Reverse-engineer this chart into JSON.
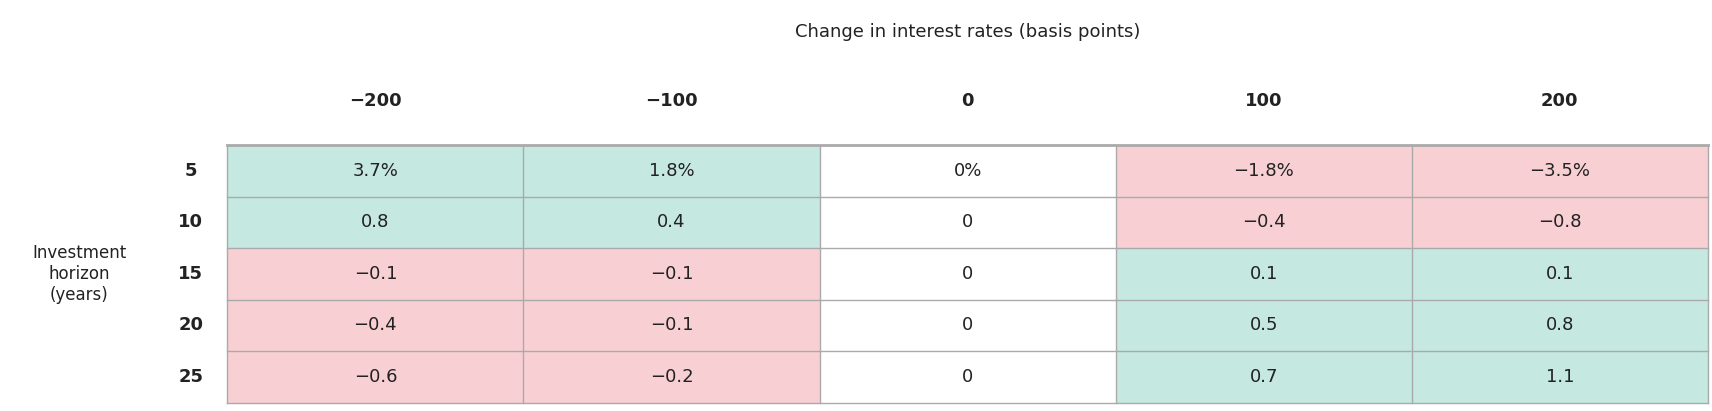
{
  "title": "Change in interest rates (basis points)",
  "col_headers": [
    "−200",
    "−100",
    "0",
    "100",
    "200"
  ],
  "row_headers": [
    "5",
    "10",
    "15",
    "20",
    "25"
  ],
  "row_label_title": "Investment\nhorizon\n(years)",
  "cell_values": [
    [
      "3.7%",
      "1.8%",
      "0%",
      "−1.8%",
      "−3.5%"
    ],
    [
      "0.8",
      "0.4",
      "0",
      "−0.4",
      "−0.8"
    ],
    [
      "−0.1",
      "−0.1",
      "0",
      "0.1",
      "0.1"
    ],
    [
      "−0.4",
      "−0.1",
      "0",
      "0.5",
      "0.8"
    ],
    [
      "−0.6",
      "−0.2",
      "0",
      "0.7",
      "1.1"
    ]
  ],
  "cell_colors": [
    [
      "#c5e8e0",
      "#c5e8e0",
      "#ffffff",
      "#f8d0d3",
      "#f8d0d3"
    ],
    [
      "#c5e8e0",
      "#c5e8e0",
      "#ffffff",
      "#f8d0d3",
      "#f8d0d3"
    ],
    [
      "#f8d0d3",
      "#f8d0d3",
      "#ffffff",
      "#c5e8e0",
      "#c5e8e0"
    ],
    [
      "#f8d0d3",
      "#f8d0d3",
      "#ffffff",
      "#c5e8e0",
      "#c5e8e0"
    ],
    [
      "#f8d0d3",
      "#f8d0d3",
      "#ffffff",
      "#c5e8e0",
      "#c5e8e0"
    ]
  ],
  "background_color": "#ffffff",
  "grid_color": "#aaaaaa",
  "text_color": "#222222",
  "title_fontsize": 13,
  "header_fontsize": 13,
  "cell_fontsize": 13,
  "row_label_fontsize": 12
}
